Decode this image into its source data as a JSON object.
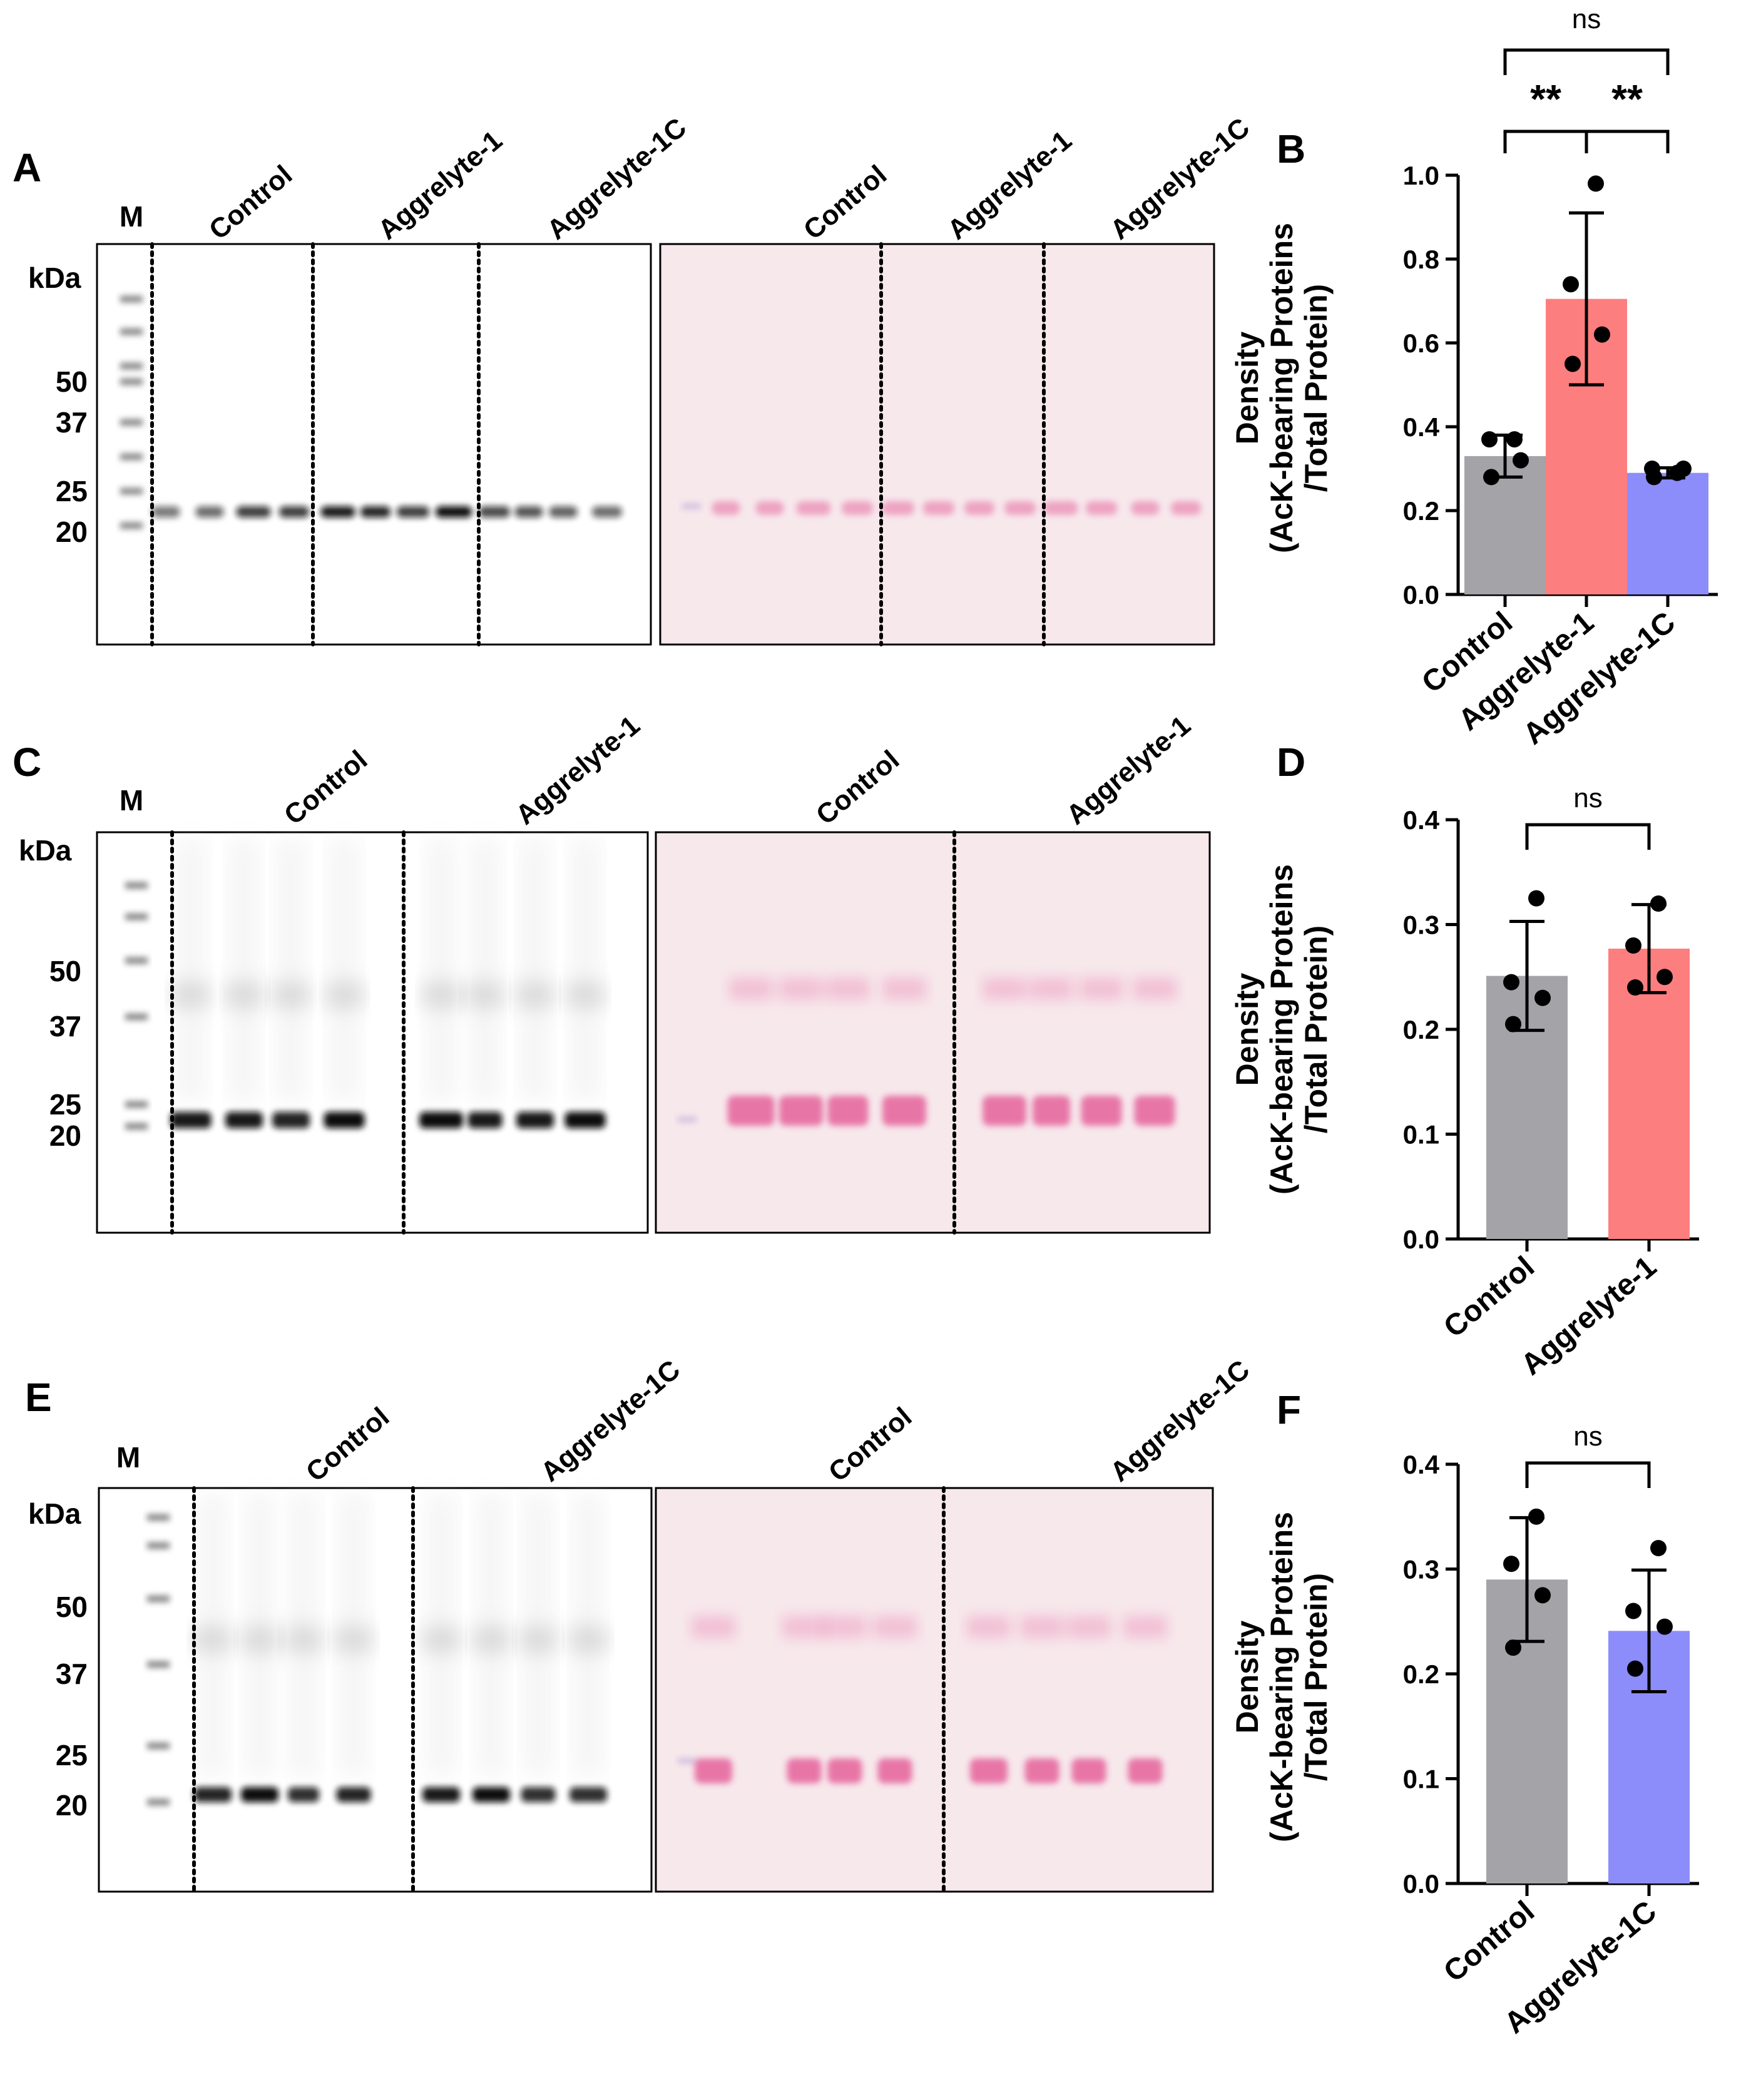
{
  "panels": {
    "A": {
      "letter": "A",
      "marker_label": "M",
      "kda_label": "kDa",
      "mw_markers": [
        "50",
        "37",
        "25",
        "20"
      ],
      "blot_lanes": [
        "Control",
        "Aggrelyte-1",
        "Aggrelyte-1C"
      ],
      "stain_lanes": [
        "Control",
        "Aggrelyte-1",
        "Aggrelyte-1C"
      ]
    },
    "C": {
      "letter": "C",
      "marker_label": "M",
      "kda_label": "kDa",
      "mw_markers": [
        "50",
        "37",
        "25",
        "20"
      ],
      "blot_lanes": [
        "Control",
        "Aggrelyte-1"
      ],
      "stain_lanes": [
        "Control",
        "Aggrelyte-1"
      ]
    },
    "E": {
      "letter": "E",
      "marker_label": "M",
      "kda_label": "kDa",
      "mw_markers": [
        "50",
        "37",
        "25",
        "20"
      ],
      "blot_lanes": [
        "Control",
        "Aggrelyte-1C"
      ],
      "stain_lanes": [
        "Control",
        "Aggrelyte-1C"
      ]
    }
  },
  "colors": {
    "control": "#a3a3a8",
    "aggrelyte1": "#fd7e7f",
    "aggrelyte1c": "#8d8cfb",
    "stain_bg": "#f7e8ec",
    "stain_band": "#e2508f"
  },
  "chart_data": [
    {
      "letter": "B",
      "type": "bar",
      "categories": [
        "Control",
        "Aggrelyte-1",
        "Aggrelyte-1C"
      ],
      "values": [
        0.33,
        0.705,
        0.29
      ],
      "errors": [
        0.05,
        0.205,
        0.012
      ],
      "points": [
        [
          0.37,
          0.37,
          0.32,
          0.28
        ],
        [
          0.98,
          0.74,
          0.62,
          0.55
        ],
        [
          0.29,
          0.3,
          0.3,
          0.28
        ]
      ],
      "ylabel": "Density\n(AcK-bearing Proteins\n/Total Protein)",
      "ylim": [
        0,
        1.0
      ],
      "yticks": [
        "0.0",
        "0.2",
        "0.4",
        "0.6",
        "0.8",
        "1.0"
      ],
      "significance": [
        {
          "from": 0,
          "to": 1,
          "label": "**"
        },
        {
          "from": 1,
          "to": 2,
          "label": "**"
        },
        {
          "from": 0,
          "to": 2,
          "label": "ns"
        }
      ]
    },
    {
      "letter": "D",
      "type": "bar",
      "categories": [
        "Control",
        "Aggrelyte-1"
      ],
      "values": [
        0.251,
        0.277
      ],
      "errors": [
        0.052,
        0.042
      ],
      "points": [
        [
          0.325,
          0.245,
          0.23,
          0.205
        ],
        [
          0.32,
          0.28,
          0.25,
          0.24
        ]
      ],
      "ylabel": "Density\n(AcK-bearing Proteins\n/Total Protein)",
      "ylim": [
        0,
        0.4
      ],
      "yticks": [
        "0.0",
        "0.1",
        "0.2",
        "0.3",
        "0.4"
      ],
      "significance": [
        {
          "from": 0,
          "to": 1,
          "label": "ns"
        }
      ]
    },
    {
      "letter": "F",
      "type": "bar",
      "categories": [
        "Control",
        "Aggrelyte-1C"
      ],
      "values": [
        0.29,
        0.241
      ],
      "errors": [
        0.059,
        0.058
      ],
      "points": [
        [
          0.35,
          0.305,
          0.275,
          0.225
        ],
        [
          0.32,
          0.26,
          0.245,
          0.205
        ]
      ],
      "ylabel": "Density\n(AcK-bearing Proteins\n/Total Protein)",
      "ylim": [
        0,
        0.4
      ],
      "yticks": [
        "0.0",
        "0.1",
        "0.2",
        "0.3",
        "0.4"
      ],
      "significance": [
        {
          "from": 0,
          "to": 1,
          "label": "ns"
        }
      ]
    }
  ]
}
